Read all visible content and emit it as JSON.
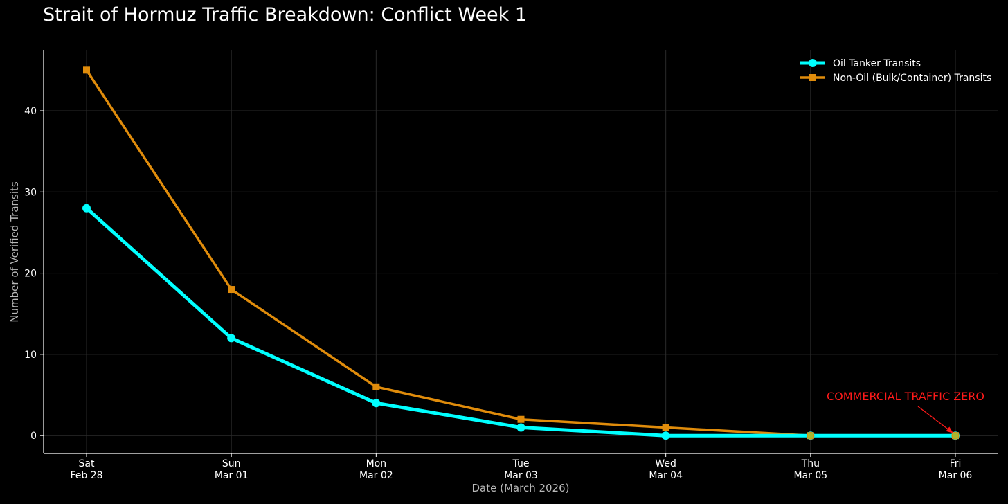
{
  "chart_data": {
    "type": "line",
    "title": "Strait of Hormuz Traffic Breakdown: Conflict Week 1",
    "xlabel": "Date (March 2026)",
    "ylabel": "Number of Verified Transits",
    "categories": [
      {
        "day": "Sat",
        "date": "Feb 28"
      },
      {
        "day": "Sun",
        "date": "Mar 01"
      },
      {
        "day": "Mon",
        "date": "Mar 02"
      },
      {
        "day": "Tue",
        "date": "Mar 03"
      },
      {
        "day": "Wed",
        "date": "Mar 04"
      },
      {
        "day": "Thu",
        "date": "Mar 05"
      },
      {
        "day": "Fri",
        "date": "Mar 06"
      }
    ],
    "ylim": [
      -2.2,
      47.5
    ],
    "yticks": [
      0,
      10,
      20,
      30,
      40
    ],
    "grid": true,
    "legend_position": "top-right",
    "series": [
      {
        "name": "Oil Tanker Transits",
        "color": "#00ffff",
        "marker": "circle",
        "values": [
          28,
          12,
          4,
          1,
          0,
          0,
          0
        ]
      },
      {
        "name": "Non-Oil (Bulk/Container) Transits",
        "color": "#e08c0b",
        "marker": "square",
        "values": [
          45,
          18,
          6,
          2,
          1,
          0,
          0
        ]
      }
    ],
    "annotations": [
      {
        "text": "COMMERCIAL TRAFFIC ZERO",
        "color": "#ff1a1a",
        "target_index": 6,
        "target_value": 0
      }
    ]
  }
}
